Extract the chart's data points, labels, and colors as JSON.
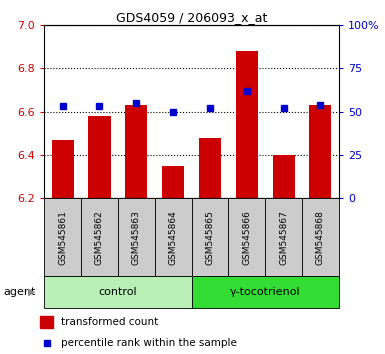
{
  "title": "GDS4059 / 206093_x_at",
  "samples": [
    "GSM545861",
    "GSM545862",
    "GSM545863",
    "GSM545864",
    "GSM545865",
    "GSM545866",
    "GSM545867",
    "GSM545868"
  ],
  "red_values": [
    6.47,
    6.58,
    6.63,
    6.35,
    6.48,
    6.88,
    6.4,
    6.63
  ],
  "blue_values": [
    53,
    53,
    55,
    50,
    52,
    62,
    52,
    54
  ],
  "bar_base": 6.2,
  "ylim_left": [
    6.2,
    7.0
  ],
  "ylim_right": [
    0,
    100
  ],
  "yticks_left": [
    6.2,
    6.4,
    6.6,
    6.8,
    7.0
  ],
  "yticks_right": [
    0,
    25,
    50,
    75,
    100
  ],
  "ytick_labels_right": [
    "0",
    "25",
    "50",
    "75",
    "100%"
  ],
  "control_samples": 4,
  "agent_labels": [
    "control",
    "γ-tocotrienol"
  ],
  "agent_colors_light": "#b8f0b8",
  "agent_colors_bright": "#33dd33",
  "bar_color": "#cc0000",
  "blue_color": "#0000cc",
  "bar_width": 0.6,
  "grid_color": "black",
  "background_color": "white",
  "tick_color_left": "#cc0000",
  "tick_color_right": "#0000cc",
  "legend_red_label": "transformed count",
  "legend_blue_label": "percentile rank within the sample",
  "agent_row_label": "agent",
  "sample_bg_color": "#cccccc"
}
